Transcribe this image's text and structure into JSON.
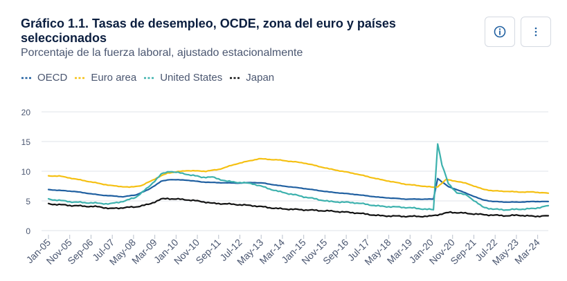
{
  "header": {
    "title": "Gráfico 1.1. Tasas de desempleo, OCDE, zona del euro y países seleccionados",
    "subtitle": "Porcentaje de la fuerza laboral, ajustado estacionalmente",
    "info_icon": "info-circle-icon",
    "more_icon": "vertical-ellipsis-icon"
  },
  "colors": {
    "OECD": "#1f5fa0",
    "Euro area": "#f5c012",
    "United States": "#3cb1ad",
    "Japan": "#111111",
    "grid": "#dfe3ea",
    "axis_text": "#4a5670"
  },
  "chart_data": {
    "type": "line",
    "title": "Gráfico 1.1. Tasas de desempleo, OCDE, zona del euro y países seleccionados",
    "subtitle": "Porcentaje de la fuerza laboral, ajustado estacionalmente",
    "xlabel": "",
    "ylabel": "",
    "ylim": [
      0,
      20
    ],
    "yticks": [
      0,
      5,
      10,
      15,
      20
    ],
    "grid": true,
    "legend_position": "top-left",
    "x_start": "2005-01",
    "x_end": "2024-08",
    "xtick_labels": [
      "Jan-05",
      "Nov-05",
      "Sep-06",
      "Jul-07",
      "May-08",
      "Mar-09",
      "Jan-10",
      "Nov-10",
      "Sep-11",
      "Jul-12",
      "May-13",
      "Mar-14",
      "Jan-15",
      "Nov-15",
      "Sep-16",
      "Jul-17",
      "May-18",
      "Mar-19",
      "Jan-20",
      "Nov-20",
      "Sep-21",
      "Jul-22",
      "May-23",
      "Mar-24"
    ],
    "series": [
      {
        "name": "OECD",
        "points": [
          [
            "2005-01",
            6.9
          ],
          [
            "2006-01",
            6.6
          ],
          [
            "2007-01",
            6.0
          ],
          [
            "2007-12",
            5.7
          ],
          [
            "2008-06",
            6.0
          ],
          [
            "2008-12",
            6.9
          ],
          [
            "2009-06",
            8.3
          ],
          [
            "2009-10",
            8.6
          ],
          [
            "2010-06",
            8.5
          ],
          [
            "2011-01",
            8.2
          ],
          [
            "2011-06",
            8.1
          ],
          [
            "2012-06",
            8.0
          ],
          [
            "2013-01",
            8.1
          ],
          [
            "2013-06",
            8.0
          ],
          [
            "2014-01",
            7.6
          ],
          [
            "2015-01",
            7.1
          ],
          [
            "2016-01",
            6.5
          ],
          [
            "2017-01",
            6.1
          ],
          [
            "2018-01",
            5.6
          ],
          [
            "2019-01",
            5.3
          ],
          [
            "2019-12",
            5.3
          ],
          [
            "2020-02",
            5.3
          ],
          [
            "2020-04",
            8.8
          ],
          [
            "2020-06",
            8.2
          ],
          [
            "2020-09",
            7.4
          ],
          [
            "2021-01",
            6.9
          ],
          [
            "2021-06",
            6.2
          ],
          [
            "2022-01",
            5.2
          ],
          [
            "2022-06",
            4.9
          ],
          [
            "2023-01",
            4.8
          ],
          [
            "2023-06",
            4.8
          ],
          [
            "2024-01",
            4.9
          ],
          [
            "2024-08",
            4.9
          ]
        ]
      },
      {
        "name": "Euro area",
        "points": [
          [
            "2005-01",
            9.2
          ],
          [
            "2005-06",
            9.2
          ],
          [
            "2006-06",
            8.4
          ],
          [
            "2007-06",
            7.6
          ],
          [
            "2008-03",
            7.3
          ],
          [
            "2008-09",
            7.6
          ],
          [
            "2009-03",
            8.7
          ],
          [
            "2009-09",
            9.7
          ],
          [
            "2010-06",
            10.1
          ],
          [
            "2011-03",
            10.0
          ],
          [
            "2011-09",
            10.3
          ],
          [
            "2012-06",
            11.3
          ],
          [
            "2013-04",
            12.1
          ],
          [
            "2014-01",
            11.9
          ],
          [
            "2015-01",
            11.4
          ],
          [
            "2016-01",
            10.4
          ],
          [
            "2017-01",
            9.6
          ],
          [
            "2018-01",
            8.6
          ],
          [
            "2019-01",
            7.8
          ],
          [
            "2020-02",
            7.3
          ],
          [
            "2020-04",
            7.4
          ],
          [
            "2020-08",
            8.6
          ],
          [
            "2021-01",
            8.3
          ],
          [
            "2021-06",
            7.9
          ],
          [
            "2022-01",
            7.0
          ],
          [
            "2022-06",
            6.7
          ],
          [
            "2023-01",
            6.6
          ],
          [
            "2023-06",
            6.5
          ],
          [
            "2024-01",
            6.5
          ],
          [
            "2024-08",
            6.3
          ]
        ]
      },
      {
        "name": "United States",
        "points": [
          [
            "2005-01",
            5.3
          ],
          [
            "2006-01",
            4.8
          ],
          [
            "2007-01",
            4.6
          ],
          [
            "2007-06",
            4.5
          ],
          [
            "2008-01",
            5.0
          ],
          [
            "2008-06",
            5.6
          ],
          [
            "2008-12",
            7.3
          ],
          [
            "2009-06",
            9.5
          ],
          [
            "2009-10",
            10.0
          ],
          [
            "2010-06",
            9.5
          ],
          [
            "2011-01",
            9.0
          ],
          [
            "2011-06",
            9.0
          ],
          [
            "2012-01",
            8.3
          ],
          [
            "2013-01",
            7.9
          ],
          [
            "2014-01",
            6.6
          ],
          [
            "2015-01",
            5.7
          ],
          [
            "2016-01",
            4.9
          ],
          [
            "2017-01",
            4.7
          ],
          [
            "2018-01",
            4.1
          ],
          [
            "2019-01",
            3.9
          ],
          [
            "2020-02",
            3.5
          ],
          [
            "2020-04",
            14.7
          ],
          [
            "2020-06",
            11.1
          ],
          [
            "2020-09",
            7.9
          ],
          [
            "2021-01",
            6.4
          ],
          [
            "2021-06",
            5.9
          ],
          [
            "2022-01",
            4.0
          ],
          [
            "2022-06",
            3.6
          ],
          [
            "2023-01",
            3.5
          ],
          [
            "2023-06",
            3.6
          ],
          [
            "2024-01",
            3.7
          ],
          [
            "2024-08",
            4.2
          ]
        ]
      },
      {
        "name": "Japan",
        "points": [
          [
            "2005-01",
            4.5
          ],
          [
            "2006-01",
            4.2
          ],
          [
            "2007-01",
            4.0
          ],
          [
            "2007-06",
            3.7
          ],
          [
            "2008-06",
            4.0
          ],
          [
            "2008-12",
            4.4
          ],
          [
            "2009-06",
            5.3
          ],
          [
            "2009-09",
            5.4
          ],
          [
            "2010-06",
            5.2
          ],
          [
            "2011-01",
            4.9
          ],
          [
            "2011-06",
            4.6
          ],
          [
            "2012-01",
            4.5
          ],
          [
            "2013-01",
            4.2
          ],
          [
            "2014-01",
            3.7
          ],
          [
            "2015-01",
            3.5
          ],
          [
            "2016-01",
            3.3
          ],
          [
            "2017-01",
            3.0
          ],
          [
            "2018-01",
            2.5
          ],
          [
            "2019-01",
            2.4
          ],
          [
            "2019-12",
            2.4
          ],
          [
            "2020-06",
            2.8
          ],
          [
            "2020-10",
            3.1
          ],
          [
            "2021-06",
            2.9
          ],
          [
            "2022-01",
            2.7
          ],
          [
            "2022-06",
            2.6
          ],
          [
            "2023-01",
            2.5
          ],
          [
            "2023-06",
            2.6
          ],
          [
            "2024-01",
            2.4
          ],
          [
            "2024-08",
            2.5
          ]
        ]
      }
    ]
  }
}
